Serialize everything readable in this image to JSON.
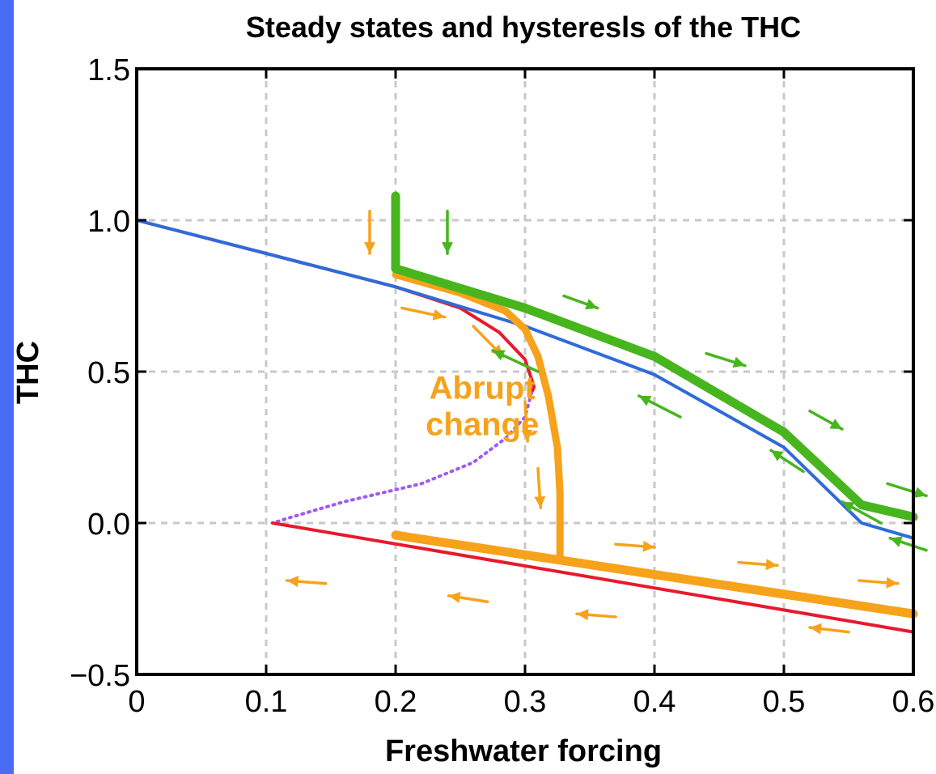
{
  "chart_data": {
    "type": "line",
    "title": "Steady states and hysteresls of the THC",
    "xlabel": "Freshwater forcing",
    "ylabel": "THC",
    "xlim": [
      0,
      0.6
    ],
    "ylim": [
      -0.5,
      1.5
    ],
    "xticks": [
      0,
      0.1,
      0.2,
      0.3,
      0.4,
      0.5,
      0.6
    ],
    "xtick_labels": [
      "0",
      "0.1",
      "0.2",
      "0.3",
      "0.4",
      "0.5",
      "0.6"
    ],
    "yticks": [
      -0.5,
      0.0,
      0.5,
      1.0,
      1.5
    ],
    "ytick_labels": [
      "−0.5",
      "0.0",
      "0.5",
      "1.0",
      "1.5"
    ],
    "grid": true,
    "annotation": {
      "lines": [
        "Abrupt",
        "change"
      ],
      "x": 0.267,
      "y": 0.45,
      "color": "#f7a21b"
    },
    "series": [
      {
        "color": "#e8192c",
        "style": "solid",
        "width": 4,
        "x": [
          0,
          0.1,
          0.2,
          0.25,
          0.28,
          0.3,
          0.307,
          0.305
        ],
        "y": [
          1.0,
          0.89,
          0.78,
          0.71,
          0.63,
          0.54,
          0.45,
          0.43
        ]
      },
      {
        "color": "#a05cf0",
        "style": "dashed",
        "width": 4,
        "x": [
          0.305,
          0.3,
          0.285,
          0.26,
          0.22,
          0.16,
          0.12,
          0.105
        ],
        "y": [
          0.43,
          0.35,
          0.28,
          0.2,
          0.13,
          0.07,
          0.02,
          0.0
        ]
      },
      {
        "color": "#e8192c",
        "style": "solid",
        "width": 4,
        "x": [
          0.105,
          0.6
        ],
        "y": [
          0.0,
          -0.36
        ]
      },
      {
        "color": "#2f6bd8",
        "style": "solid",
        "width": 4,
        "x": [
          0,
          0.1,
          0.2,
          0.3,
          0.4,
          0.5,
          0.56,
          0.6
        ],
        "y": [
          1.0,
          0.89,
          0.78,
          0.65,
          0.49,
          0.25,
          0.0,
          -0.05
        ]
      },
      {
        "color": "#f7a21b",
        "style": "solid",
        "width": 9,
        "x": [
          0.2,
          0.25,
          0.285,
          0.3,
          0.31,
          0.318,
          0.325,
          0.327,
          0.327
        ],
        "y": [
          0.82,
          0.76,
          0.7,
          0.64,
          0.55,
          0.42,
          0.25,
          0.1,
          -0.11
        ]
      },
      {
        "color": "#f7a21b",
        "style": "solid",
        "width": 11,
        "x": [
          0.2,
          0.6
        ],
        "y": [
          -0.04,
          -0.3
        ]
      },
      {
        "color": "#47b51e",
        "style": "solid",
        "width": 11,
        "x": [
          0.2,
          0.2,
          0.3,
          0.4,
          0.5,
          0.56,
          0.6
        ],
        "y": [
          1.08,
          0.84,
          0.71,
          0.55,
          0.3,
          0.06,
          0.02
        ]
      }
    ],
    "arrows": [
      {
        "color": "#f7a21b",
        "x1": 0.18,
        "y1": 1.03,
        "x2": 0.18,
        "y2": 0.89
      },
      {
        "color": "#47b51e",
        "x1": 0.24,
        "y1": 1.03,
        "x2": 0.24,
        "y2": 0.89
      },
      {
        "color": "#f7a21b",
        "x1": 0.205,
        "y1": 0.71,
        "x2": 0.238,
        "y2": 0.68
      },
      {
        "color": "#f7a21b",
        "x1": 0.26,
        "y1": 0.65,
        "x2": 0.283,
        "y2": 0.55
      },
      {
        "color": "#f7a21b",
        "x1": 0.3,
        "y1": 0.4,
        "x2": 0.302,
        "y2": 0.27
      },
      {
        "color": "#f7a21b",
        "x1": 0.31,
        "y1": 0.18,
        "x2": 0.312,
        "y2": 0.05
      },
      {
        "color": "#47b51e",
        "x1": 0.33,
        "y1": 0.75,
        "x2": 0.356,
        "y2": 0.71
      },
      {
        "color": "#47b51e",
        "x1": 0.44,
        "y1": 0.56,
        "x2": 0.47,
        "y2": 0.52
      },
      {
        "color": "#47b51e",
        "x1": 0.52,
        "y1": 0.37,
        "x2": 0.545,
        "y2": 0.31
      },
      {
        "color": "#47b51e",
        "x1": 0.58,
        "y1": 0.13,
        "x2": 0.61,
        "y2": 0.09
      },
      {
        "color": "#47b51e",
        "x1": 0.31,
        "y1": 0.5,
        "x2": 0.275,
        "y2": 0.57
      },
      {
        "color": "#47b51e",
        "x1": 0.42,
        "y1": 0.35,
        "x2": 0.388,
        "y2": 0.42
      },
      {
        "color": "#47b51e",
        "x1": 0.515,
        "y1": 0.17,
        "x2": 0.49,
        "y2": 0.24
      },
      {
        "color": "#47b51e",
        "x1": 0.575,
        "y1": 0.0,
        "x2": 0.545,
        "y2": 0.07
      },
      {
        "color": "#47b51e",
        "x1": 0.61,
        "y1": -0.09,
        "x2": 0.582,
        "y2": -0.05
      },
      {
        "color": "#f7a21b",
        "x1": 0.37,
        "y1": -0.07,
        "x2": 0.4,
        "y2": -0.08
      },
      {
        "color": "#f7a21b",
        "x1": 0.465,
        "y1": -0.13,
        "x2": 0.495,
        "y2": -0.14
      },
      {
        "color": "#f7a21b",
        "x1": 0.558,
        "y1": -0.19,
        "x2": 0.588,
        "y2": -0.2
      },
      {
        "color": "#f7a21b",
        "x1": 0.146,
        "y1": -0.2,
        "x2": 0.116,
        "y2": -0.19
      },
      {
        "color": "#f7a21b",
        "x1": 0.271,
        "y1": -0.26,
        "x2": 0.241,
        "y2": -0.24
      },
      {
        "color": "#f7a21b",
        "x1": 0.37,
        "y1": -0.31,
        "x2": 0.34,
        "y2": -0.3
      },
      {
        "color": "#f7a21b",
        "x1": 0.55,
        "y1": -0.36,
        "x2": 0.52,
        "y2": -0.345
      }
    ]
  }
}
